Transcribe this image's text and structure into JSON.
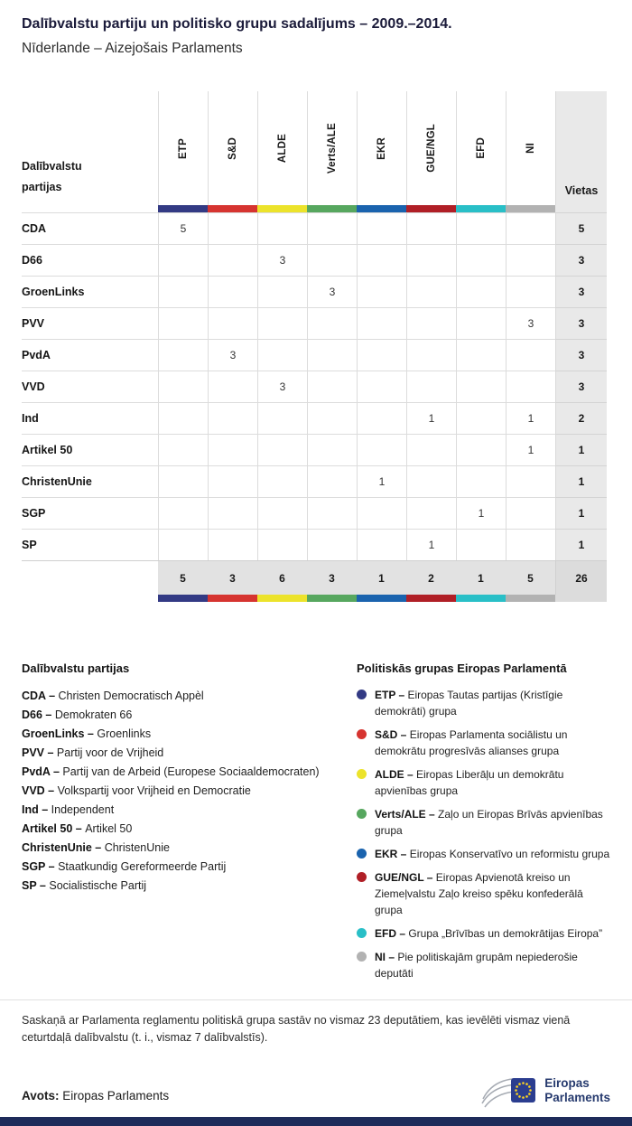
{
  "header": {
    "title": "Dalībvalstu partiju un politisko grupu sadalījums – 2009.–2014.",
    "subtitle": "Nīderlande – Aizejošais Parlaments"
  },
  "chart_data": {
    "type": "table",
    "title": "Dalībvalstu partiju un politisko grupu sadalījums – 2009.–2014.",
    "subtitle": "Nīderlande – Aizejošais Parlaments",
    "corner_label": "Dalībvalstu partijas",
    "seats_label": "Vietas",
    "groups": [
      {
        "id": "ETP",
        "color": "#333a84"
      },
      {
        "id": "S&D",
        "color": "#d63430"
      },
      {
        "id": "ALDE",
        "color": "#ece32b"
      },
      {
        "id": "Verts/ALE",
        "color": "#57a75f"
      },
      {
        "id": "EKR",
        "color": "#1a63ae"
      },
      {
        "id": "GUE/NGL",
        "color": "#b01f26"
      },
      {
        "id": "EFD",
        "color": "#29bfc7"
      },
      {
        "id": "NI",
        "color": "#b2b2b2"
      }
    ],
    "rows": [
      {
        "party": "CDA",
        "values": [
          5,
          null,
          null,
          null,
          null,
          null,
          null,
          null
        ],
        "seats": 5
      },
      {
        "party": "D66",
        "values": [
          null,
          null,
          3,
          null,
          null,
          null,
          null,
          null
        ],
        "seats": 3
      },
      {
        "party": "GroenLinks",
        "values": [
          null,
          null,
          null,
          3,
          null,
          null,
          null,
          null
        ],
        "seats": 3
      },
      {
        "party": "PVV",
        "values": [
          null,
          null,
          null,
          null,
          null,
          null,
          null,
          3
        ],
        "seats": 3
      },
      {
        "party": "PvdA",
        "values": [
          null,
          3,
          null,
          null,
          null,
          null,
          null,
          null
        ],
        "seats": 3
      },
      {
        "party": "VVD",
        "values": [
          null,
          null,
          3,
          null,
          null,
          null,
          null,
          null
        ],
        "seats": 3
      },
      {
        "party": "Ind",
        "values": [
          null,
          null,
          null,
          null,
          null,
          1,
          null,
          1
        ],
        "seats": 2
      },
      {
        "party": "Artikel 50",
        "values": [
          null,
          null,
          null,
          null,
          null,
          null,
          null,
          1
        ],
        "seats": 1
      },
      {
        "party": "ChristenUnie",
        "values": [
          null,
          null,
          null,
          null,
          1,
          null,
          null,
          null
        ],
        "seats": 1
      },
      {
        "party": "SGP",
        "values": [
          null,
          null,
          null,
          null,
          null,
          null,
          1,
          null
        ],
        "seats": 1
      },
      {
        "party": "SP",
        "values": [
          null,
          null,
          null,
          null,
          null,
          1,
          null,
          null
        ],
        "seats": 1
      }
    ],
    "totals": {
      "values": [
        5,
        3,
        6,
        3,
        1,
        2,
        1,
        5
      ],
      "seats": 26
    }
  },
  "legend_parties": {
    "title": "Dalībvalstu partijas",
    "items": [
      {
        "abbr": "CDA",
        "name": "Christen Democratisch Appèl"
      },
      {
        "abbr": "D66",
        "name": "Demokraten 66"
      },
      {
        "abbr": "GroenLinks",
        "name": "Groenlinks"
      },
      {
        "abbr": "PVV",
        "name": "Partij voor de Vrijheid"
      },
      {
        "abbr": "PvdA",
        "name": "Partij van de Arbeid (Europese Sociaaldemocraten)"
      },
      {
        "abbr": "VVD",
        "name": "Volkspartij voor Vrijheid en Democratie"
      },
      {
        "abbr": "Ind",
        "name": "Independent"
      },
      {
        "abbr": "Artikel 50",
        "name": "Artikel 50"
      },
      {
        "abbr": "ChristenUnie",
        "name": "ChristenUnie"
      },
      {
        "abbr": "SGP",
        "name": "Staatkundig Gereformeerde Partij"
      },
      {
        "abbr": "SP",
        "name": "Socialistische Partij"
      }
    ]
  },
  "legend_groups": {
    "title": "Politiskās grupas Eiropas Parlamentā",
    "items": [
      {
        "abbr": "ETP",
        "name": "Eiropas Tautas partijas (Kristīgie demokrāti) grupa",
        "color": "#333a84"
      },
      {
        "abbr": "S&D",
        "name": "Eiropas Parlamenta sociālistu un demokrātu progresīvās alianses grupa",
        "color": "#d63430"
      },
      {
        "abbr": "ALDE",
        "name": "Eiropas Liberāļu un demokrātu apvienības grupa",
        "color": "#ece32b"
      },
      {
        "abbr": "Verts/ALE",
        "name": "Zaļo un Eiropas Brīvās apvienības grupa",
        "color": "#57a75f"
      },
      {
        "abbr": "EKR",
        "name": "Eiropas Konservatīvo un reformistu grupa",
        "color": "#1a63ae"
      },
      {
        "abbr": "GUE/NGL",
        "name": "Eiropas Apvienotā kreiso un Ziemeļvalstu Zaļo kreiso spēku konfederālā grupa",
        "color": "#b01f26"
      },
      {
        "abbr": "EFD",
        "name": "Grupa „Brīvības un demokrātijas Eiropa”",
        "color": "#29bfc7"
      },
      {
        "abbr": "NI",
        "name": "Pie politiskajām grupām nepiederošie deputāti",
        "color": "#b2b2b2"
      }
    ]
  },
  "footnote": "Saskaņā ar Parlamenta reglamentu politiskā grupa sastāv no vismaz 23 deputātiem, kas ievēlēti vismaz vienā ceturtdaļā dalībvalstu (t. i., vismaz 7 dalībvalstīs).",
  "source": {
    "label": "Avots:",
    "value": "Eiropas Parlaments"
  },
  "logo": {
    "line1": "Eiropas",
    "line2": "Parlaments"
  }
}
